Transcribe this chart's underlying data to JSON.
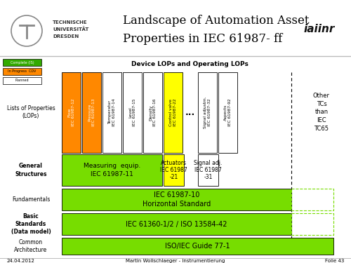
{
  "title_line1": "Landscape of Automation Asset",
  "title_line2": "Properties in IEC 61987- ff",
  "footer_text_left": "24.04.2012",
  "footer_text_mid": "Martin Wollschlaeger - Instrumentierung",
  "footer_text_right": "Folie 43",
  "device_lops_title": "Device LOPs and Operating LOPs",
  "lop_boxes": [
    {
      "label": "Flow\nIEC 61987-12",
      "color": "#ff8800",
      "text_color": "#ffffff"
    },
    {
      "label": "Pressure\nIEC 61987-13",
      "color": "#ff8800",
      "text_color": "#ffffff"
    },
    {
      "label": "Temperatur\nIEC 61987-14",
      "color": "#ffffff",
      "text_color": "#000000"
    },
    {
      "label": "Level\nIEC 61987-15",
      "color": "#ffffff",
      "text_color": "#000000"
    },
    {
      "label": "Density\nIEC 61987-16",
      "color": "#ffffff",
      "text_color": "#000000"
    },
    {
      "label": "Control valve\nIEC 61987-22",
      "color": "#ffff00",
      "text_color": "#000000"
    },
    {
      "label": "...",
      "color": "none",
      "text_color": "#000000"
    },
    {
      "label": "Signal adjustm.\nIEC 61987-32",
      "color": "#ffffff",
      "text_color": "#000000"
    },
    {
      "label": "Aspects\nIEC 61987-92",
      "color": "#ffffff",
      "text_color": "#000000"
    }
  ],
  "other_tcs_text": "Other\nTCs\nthan\nIEC\nTC65",
  "legend_colors": [
    "#33aa00",
    "#ff8800",
    "#ffffff"
  ],
  "legend_texts": [
    "Complete (IS)",
    "In Progress  CDV",
    "Planned"
  ],
  "row_labels": [
    "Lists of Properties\n(LOPs)",
    "General\nStructures",
    "Fundamentals",
    "Basic\nStandards\n(Data model)",
    "Common\nArchitecture"
  ],
  "row_bold": [
    false,
    true,
    false,
    true,
    false
  ],
  "green_color": "#77dd00",
  "yellow_color": "#ffff00",
  "white_color": "#ffffff",
  "orange_color": "#ff8800"
}
